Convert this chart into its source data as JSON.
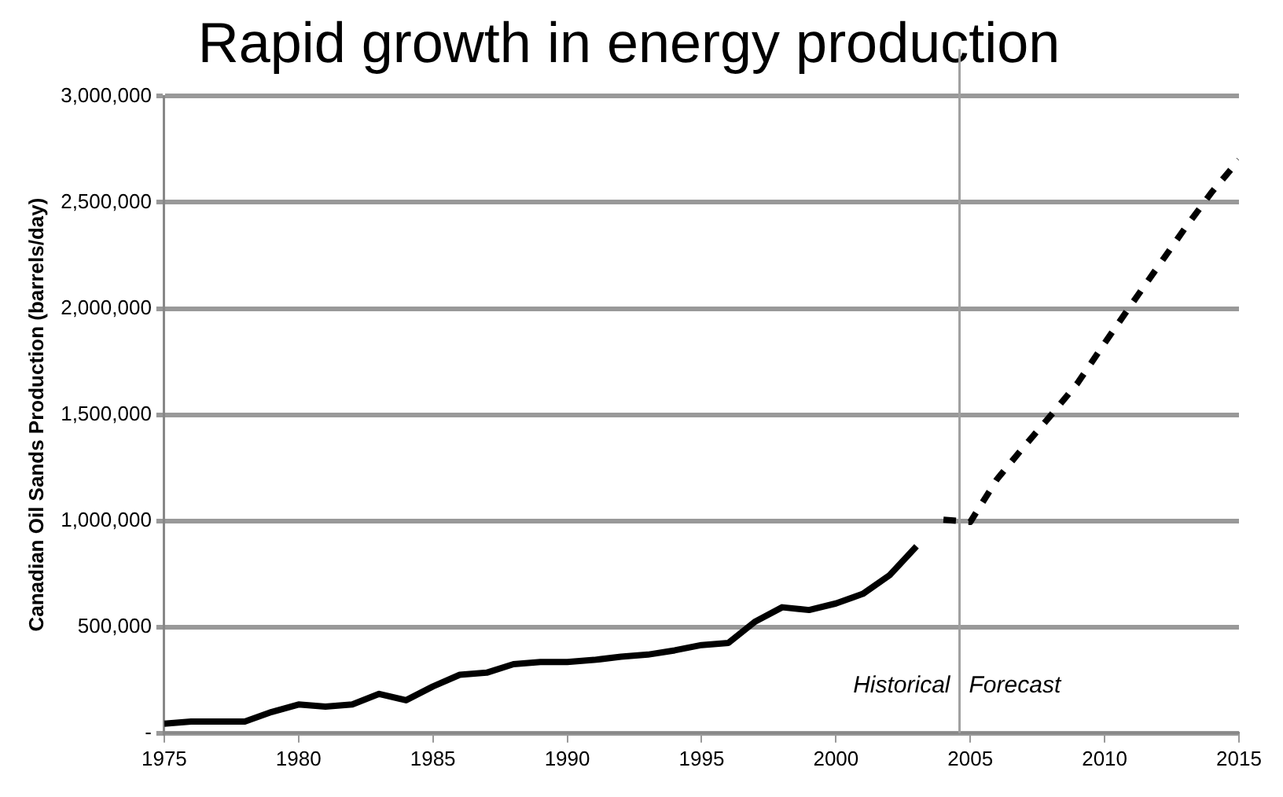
{
  "chart_data": {
    "type": "line",
    "title": "Rapid growth in energy production",
    "ylabel": "Canadian Oil Sands Production (barrels/day)",
    "series": [
      {
        "color": "#000000",
        "line_style": "solid",
        "x": [
          1975,
          1976,
          1977,
          1978,
          1979,
          1980,
          1981,
          1982,
          1983,
          1984,
          1985,
          1986,
          1987,
          1988,
          1989,
          1990,
          1991,
          1992,
          1993,
          1994,
          1995,
          1996,
          1997,
          1998,
          1999,
          2000,
          2001,
          2002,
          2003
        ],
        "values": [
          45000,
          55000,
          55000,
          55000,
          100000,
          135000,
          125000,
          135000,
          185000,
          155000,
          220000,
          275000,
          285000,
          325000,
          335000,
          335000,
          345000,
          360000,
          370000,
          390000,
          415000,
          425000,
          526000,
          593000,
          580000,
          611000,
          656000,
          744000,
          880000
        ]
      },
      {
        "color": "#000000",
        "line_style": "dashed",
        "x": [
          2004,
          2005,
          2006,
          2007,
          2008,
          2009,
          2010,
          2011,
          2012,
          2013,
          2014,
          2015
        ],
        "values": [
          1005000,
          995000,
          1197000,
          1350000,
          1497000,
          1650000,
          1837000,
          2020000,
          2200000,
          2380000,
          2550000,
          2700000
        ]
      }
    ],
    "xlim": [
      1975,
      2015
    ],
    "xticks": [
      1975,
      1980,
      1985,
      1990,
      1995,
      2000,
      2005,
      2010,
      2015
    ],
    "ylim": [
      0,
      3000000
    ],
    "yticks": [
      {
        "value": 0,
        "label": "-"
      },
      {
        "value": 500000,
        "label": "500,000"
      },
      {
        "value": 1000000,
        "label": "1,000,000"
      },
      {
        "value": 1500000,
        "label": "1,500,000"
      },
      {
        "value": 2000000,
        "label": "2,000,000"
      },
      {
        "value": 2500000,
        "label": "2,500,000"
      },
      {
        "value": 3000000,
        "label": "3,000,000"
      }
    ],
    "ref_lines": [
      {
        "axis": "x",
        "value": 2004.6,
        "color": "#a0a0a0"
      }
    ],
    "annotations": [
      "Historical",
      "Forecast"
    ],
    "grid": "y",
    "legend": false,
    "marker": "none"
  }
}
